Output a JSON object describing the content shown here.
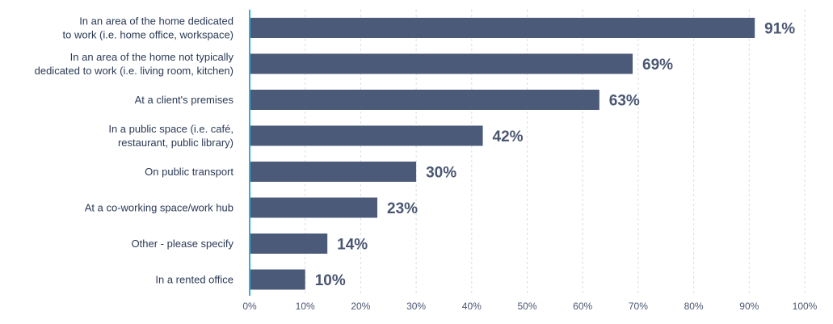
{
  "chart_data": {
    "type": "bar",
    "orientation": "horizontal",
    "title": "",
    "xlabel": "",
    "ylabel": "",
    "categories": [
      "In an area of the home dedicated to work (i.e. home office, workspace)",
      "In an area of the home not typically dedicated to work (i.e. living room, kitchen)",
      "At a client's premises",
      "In a public space (i.e. café, restaurant, public library)",
      "On public transport",
      "At a co-working space/work hub",
      "Other - please specify",
      "In a rented office"
    ],
    "category_lines": [
      [
        "In an area of the home dedicated",
        "to work (i.e. home office, workspace)"
      ],
      [
        "In an area of the home not typically",
        "dedicated to work (i.e. living room, kitchen)"
      ],
      [
        "At a client's premises"
      ],
      [
        "In a public space (i.e. café,",
        "restaurant, public library)"
      ],
      [
        "On public transport"
      ],
      [
        "At a co-working space/work hub"
      ],
      [
        "Other - please specify"
      ],
      [
        "In a rented office"
      ]
    ],
    "values": [
      91,
      69,
      63,
      42,
      30,
      23,
      14,
      10
    ],
    "value_labels": [
      "91%",
      "69%",
      "63%",
      "42%",
      "30%",
      "23%",
      "14%",
      "10%"
    ],
    "xlim": [
      0,
      100
    ],
    "x_ticks": [
      0,
      10,
      20,
      30,
      40,
      50,
      60,
      70,
      80,
      90,
      100
    ],
    "x_tick_labels": [
      "0%",
      "10%",
      "20%",
      "30%",
      "40%",
      "50%",
      "60%",
      "70%",
      "80%",
      "90%",
      "100%"
    ],
    "grid": "vertical dashed",
    "legend": "none",
    "colors": {
      "bar": "#4b5a78",
      "axis": "#29b3d6",
      "grid": "#d9dde3",
      "label": "#2b3a55",
      "value": "#4a5672"
    }
  }
}
